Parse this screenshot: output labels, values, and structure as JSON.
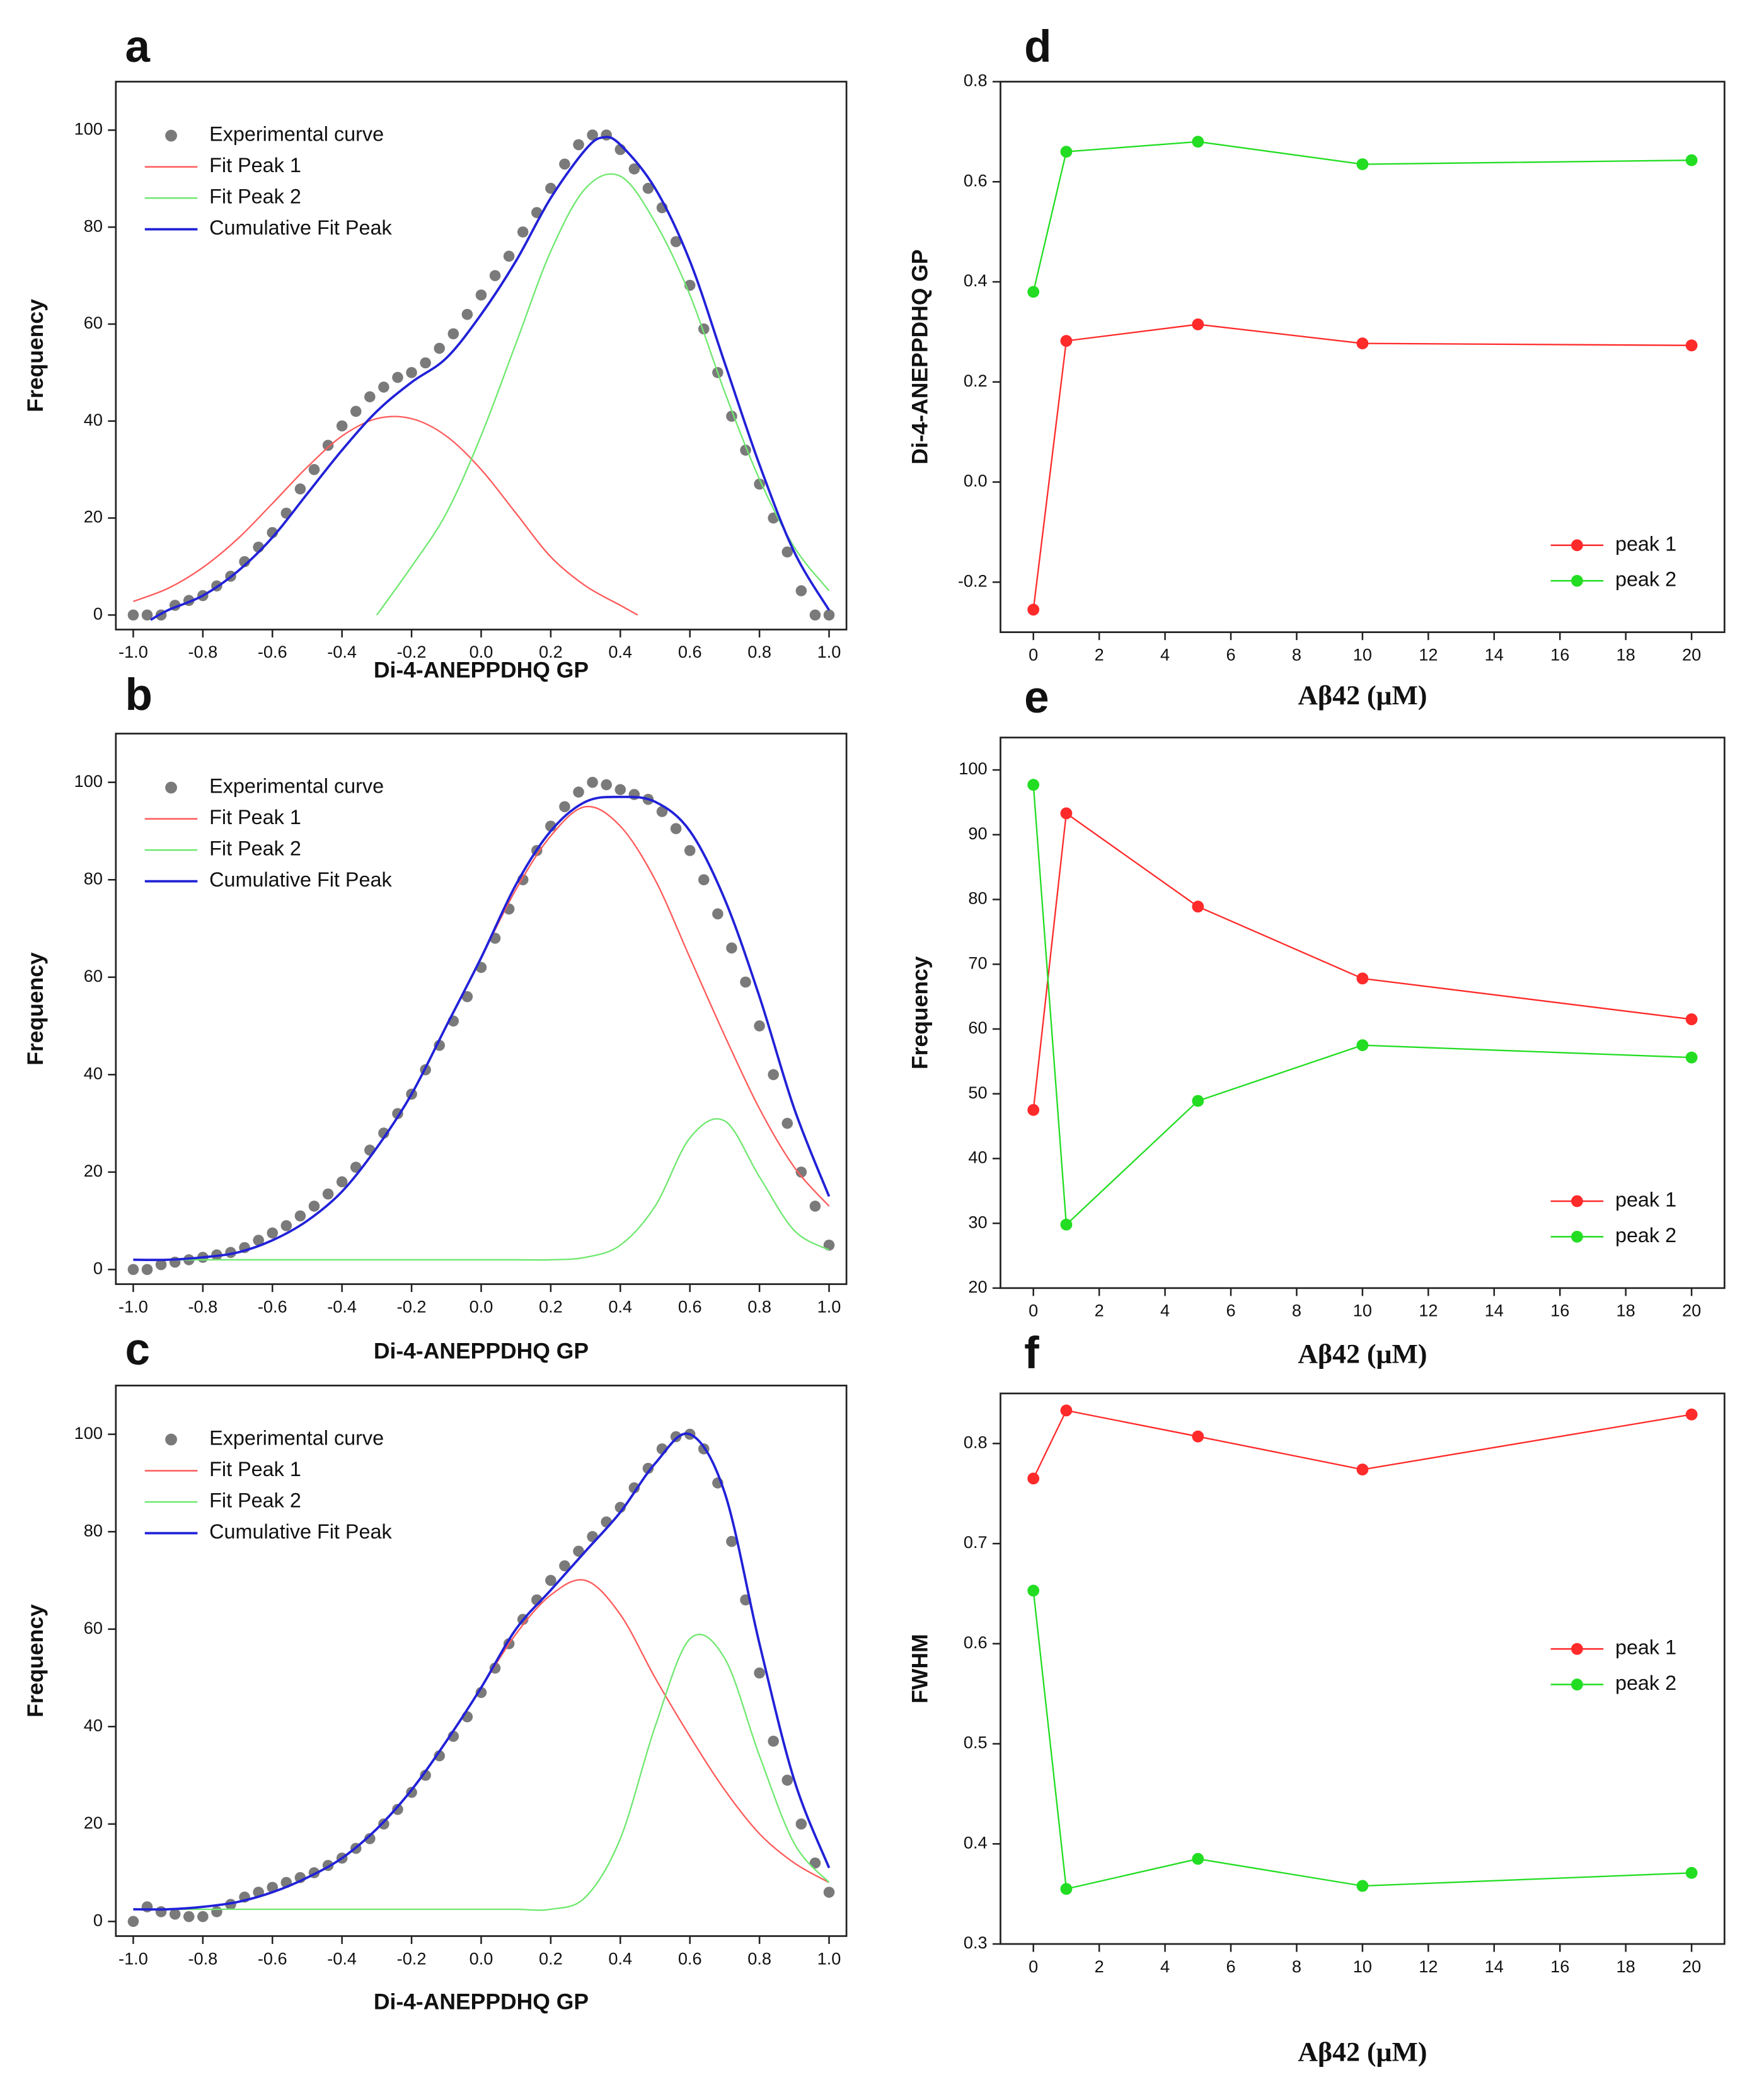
{
  "chart_data": [
    {
      "type": "line",
      "label": "a",
      "xlabel": "Di-4-ANEPPDHQ GP",
      "ylabel": "Frequency",
      "xlabel_font": "sans",
      "xlim": [
        -1.05,
        1.05
      ],
      "ylim": [
        -3,
        110
      ],
      "xticks": [
        {
          "value": -1.0,
          "label": "-1.0"
        },
        -0.8,
        -0.6,
        -0.4,
        -0.2,
        {
          "value": 0,
          "label": "0.0"
        },
        0.2,
        0.4,
        0.6,
        0.8,
        {
          "value": 1.0,
          "label": "1.0"
        }
      ],
      "yticks": [
        0,
        20,
        40,
        60,
        80,
        100
      ],
      "legend": "upper left",
      "series": [
        {
          "name": "Experimental curve",
          "color": "#7a7a7a",
          "markers": true,
          "line": false,
          "x": [
            -1.0,
            -0.96,
            -0.92,
            -0.88,
            -0.84,
            -0.8,
            -0.76,
            -0.72,
            -0.68,
            -0.64,
            -0.6,
            -0.56,
            -0.52,
            -0.48,
            -0.44,
            -0.4,
            -0.36,
            -0.32,
            -0.28,
            -0.24,
            -0.2,
            -0.16,
            -0.12,
            -0.08,
            -0.04,
            0,
            0.04,
            0.08,
            0.12,
            0.16,
            0.2,
            0.24,
            0.28,
            0.32,
            0.36,
            0.4,
            0.44,
            0.48,
            0.52,
            0.56,
            0.6,
            0.64,
            0.68,
            0.72,
            0.76,
            0.8,
            0.84,
            0.88,
            0.92,
            0.96,
            1.0
          ],
          "values": [
            0,
            0,
            0,
            2,
            3,
            4,
            6,
            8,
            11,
            14,
            17,
            21,
            26,
            30,
            35,
            39,
            42,
            45,
            47,
            49,
            50,
            52,
            55,
            58,
            62,
            66,
            70,
            74,
            79,
            83,
            88,
            93,
            97,
            99,
            99,
            96,
            92,
            88,
            84,
            77,
            68,
            59,
            50,
            41,
            34,
            27,
            20,
            13,
            5,
            0,
            0
          ]
        },
        {
          "name": "Fit Peak 1",
          "color": "#ff5a5a",
          "markers": false,
          "line": true,
          "smooth": true,
          "x": [
            -1,
            -0.9,
            -0.8,
            -0.7,
            -0.6,
            -0.5,
            -0.4,
            -0.3,
            -0.2,
            -0.1,
            0,
            0.1,
            0.2,
            0.3,
            0.4,
            0.45
          ],
          "values": [
            2.8,
            5.5,
            9.8,
            15.7,
            23,
            30.5,
            36.9,
            40.5,
            40.5,
            36.9,
            30,
            21,
            12,
            6,
            2,
            0
          ]
        },
        {
          "name": "Fit Peak 2",
          "color": "#6fe86f",
          "markers": false,
          "line": true,
          "smooth": true,
          "x": [
            -0.3,
            -0.2,
            -0.1,
            0,
            0.1,
            0.2,
            0.3,
            0.4,
            0.5,
            0.6,
            0.7,
            0.8,
            0.9,
            1.0
          ],
          "values": [
            0,
            10,
            21,
            37,
            56,
            75,
            88,
            90.5,
            81,
            66,
            46,
            28,
            14,
            5
          ]
        },
        {
          "name": "Cumulative Fit Peak",
          "color": "#2121d8",
          "markers": false,
          "line": true,
          "smooth": true,
          "x": [
            -0.95,
            -0.9,
            -0.8,
            -0.7,
            -0.6,
            -0.5,
            -0.4,
            -0.3,
            -0.2,
            -0.1,
            0,
            0.1,
            0.2,
            0.3,
            0.35,
            0.4,
            0.5,
            0.6,
            0.7,
            0.8,
            0.9,
            1.0
          ],
          "values": [
            -1,
            1,
            4,
            9,
            16,
            25,
            34,
            42,
            48,
            53,
            62,
            73,
            86,
            96,
            98.5,
            97,
            88,
            73,
            52,
            31,
            13,
            1
          ]
        }
      ]
    },
    {
      "type": "line",
      "label": "b",
      "xlabel": "Di-4-ANEPPDHQ GP",
      "ylabel": "Frequency",
      "xlabel_font": "sans",
      "xlim": [
        -1.05,
        1.05
      ],
      "ylim": [
        -3,
        110
      ],
      "xticks": [
        {
          "value": -1.0,
          "label": "-1.0"
        },
        -0.8,
        -0.6,
        -0.4,
        -0.2,
        {
          "value": 0,
          "label": "0.0"
        },
        0.2,
        0.4,
        0.6,
        0.8,
        {
          "value": 1.0,
          "label": "1.0"
        }
      ],
      "yticks": [
        0,
        20,
        40,
        60,
        80,
        100
      ],
      "legend": "upper left",
      "series": [
        {
          "name": "Experimental curve",
          "color": "#7a7a7a",
          "markers": true,
          "line": false,
          "x": [
            -1.0,
            -0.96,
            -0.92,
            -0.88,
            -0.84,
            -0.8,
            -0.76,
            -0.72,
            -0.68,
            -0.64,
            -0.6,
            -0.56,
            -0.52,
            -0.48,
            -0.44,
            -0.4,
            -0.36,
            -0.32,
            -0.28,
            -0.24,
            -0.2,
            -0.16,
            -0.12,
            -0.08,
            -0.04,
            0,
            0.04,
            0.08,
            0.12,
            0.16,
            0.2,
            0.24,
            0.28,
            0.32,
            0.36,
            0.4,
            0.44,
            0.48,
            0.52,
            0.56,
            0.6,
            0.64,
            0.68,
            0.72,
            0.76,
            0.8,
            0.84,
            0.88,
            0.92,
            0.96,
            1.0
          ],
          "values": [
            0,
            0,
            1,
            1.5,
            2,
            2.5,
            3,
            3.5,
            4.5,
            6,
            7.5,
            9,
            11,
            13,
            15.5,
            18,
            21,
            24.5,
            28,
            32,
            36,
            41,
            46,
            51,
            56,
            62,
            68,
            74,
            80,
            86,
            91,
            95,
            98,
            100,
            99.5,
            98.5,
            97.5,
            96.5,
            94,
            90.5,
            86,
            80,
            73,
            66,
            59,
            50,
            40,
            30,
            20,
            13,
            5
          ]
        },
        {
          "name": "Fit Peak 1",
          "color": "#ff5a5a",
          "markers": false,
          "line": true,
          "smooth": true,
          "x": [
            -1,
            -0.9,
            -0.8,
            -0.7,
            -0.6,
            -0.5,
            -0.4,
            -0.3,
            -0.2,
            -0.1,
            0,
            0.1,
            0.2,
            0.3,
            0.4,
            0.5,
            0.6,
            0.7,
            0.8,
            0.9,
            1.0
          ],
          "values": [
            2,
            2,
            2.5,
            3.5,
            6,
            10,
            16,
            25,
            36,
            50,
            64,
            78,
            89,
            95,
            91,
            80,
            64,
            48,
            33,
            21,
            13
          ]
        },
        {
          "name": "Fit Peak 2",
          "color": "#6fe86f",
          "markers": false,
          "line": true,
          "smooth": true,
          "x": [
            -1,
            -0.9,
            -0.8,
            -0.7,
            -0.6,
            -0.5,
            -0.4,
            -0.3,
            -0.2,
            -0.1,
            0,
            0.1,
            0.2,
            0.3,
            0.4,
            0.5,
            0.6,
            0.7,
            0.8,
            0.9,
            1.0
          ],
          "values": [
            2,
            2,
            2,
            2,
            2,
            2,
            2,
            2,
            2,
            2,
            2,
            2,
            2,
            2.5,
            5,
            13,
            27,
            30.5,
            19,
            8,
            4
          ]
        },
        {
          "name": "Cumulative Fit Peak",
          "color": "#2121d8",
          "markers": false,
          "line": true,
          "smooth": true,
          "x": [
            -1,
            -0.9,
            -0.8,
            -0.7,
            -0.6,
            -0.5,
            -0.4,
            -0.3,
            -0.2,
            -0.1,
            0,
            0.1,
            0.2,
            0.3,
            0.4,
            0.5,
            0.6,
            0.7,
            0.8,
            0.9,
            1.0
          ],
          "values": [
            2,
            2,
            2.5,
            3.5,
            6,
            10,
            16,
            25,
            36,
            50,
            64,
            79,
            90,
            96,
            97,
            96,
            90,
            76,
            56,
            33,
            15
          ]
        }
      ]
    },
    {
      "type": "line",
      "label": "c",
      "xlabel": "Di-4-ANEPPDHQ GP",
      "ylabel": "Frequency",
      "xlabel_font": "sans",
      "xlim": [
        -1.05,
        1.05
      ],
      "ylim": [
        -3,
        110
      ],
      "xticks": [
        {
          "value": -1.0,
          "label": "-1.0"
        },
        -0.8,
        -0.6,
        -0.4,
        -0.2,
        {
          "value": 0,
          "label": "0.0"
        },
        0.2,
        0.4,
        0.6,
        0.8,
        {
          "value": 1.0,
          "label": "1.0"
        }
      ],
      "yticks": [
        0,
        20,
        40,
        60,
        80,
        100
      ],
      "legend": "upper left",
      "series": [
        {
          "name": "Experimental curve",
          "color": "#7a7a7a",
          "markers": true,
          "line": false,
          "x": [
            -1.0,
            -0.96,
            -0.92,
            -0.88,
            -0.84,
            -0.8,
            -0.76,
            -0.72,
            -0.68,
            -0.64,
            -0.6,
            -0.56,
            -0.52,
            -0.48,
            -0.44,
            -0.4,
            -0.36,
            -0.32,
            -0.28,
            -0.24,
            -0.2,
            -0.16,
            -0.12,
            -0.08,
            -0.04,
            0,
            0.04,
            0.08,
            0.12,
            0.16,
            0.2,
            0.24,
            0.28,
            0.32,
            0.36,
            0.4,
            0.44,
            0.48,
            0.52,
            0.56,
            0.6,
            0.64,
            0.68,
            0.72,
            0.76,
            0.8,
            0.84,
            0.88,
            0.92,
            0.96,
            1.0
          ],
          "values": [
            0,
            3,
            2,
            1.5,
            1,
            1,
            2,
            3.5,
            5,
            6,
            7,
            8,
            9,
            10,
            11.5,
            13,
            15,
            17,
            20,
            23,
            26.5,
            30,
            34,
            38,
            42,
            47,
            52,
            57,
            62,
            66,
            70,
            73,
            76,
            79,
            82,
            85,
            89,
            93,
            97,
            99.5,
            100,
            97,
            90,
            78,
            66,
            51,
            37,
            29,
            20,
            12,
            6
          ]
        },
        {
          "name": "Fit Peak 1",
          "color": "#ff5a5a",
          "markers": false,
          "line": true,
          "smooth": true,
          "x": [
            -1,
            -0.9,
            -0.8,
            -0.7,
            -0.6,
            -0.5,
            -0.4,
            -0.3,
            -0.2,
            -0.1,
            0,
            0.1,
            0.2,
            0.3,
            0.4,
            0.5,
            0.6,
            0.7,
            0.8,
            0.9,
            1.0
          ],
          "values": [
            2.5,
            2.5,
            3,
            4,
            6,
            9,
            13,
            19,
            27,
            37,
            48,
            59,
            67,
            70,
            63,
            50,
            38,
            27,
            18,
            12,
            8
          ]
        },
        {
          "name": "Fit Peak 2",
          "color": "#6fe86f",
          "markers": false,
          "line": true,
          "smooth": true,
          "x": [
            -1,
            -0.9,
            -0.8,
            -0.7,
            -0.6,
            -0.5,
            -0.4,
            -0.3,
            -0.2,
            -0.1,
            0,
            0.1,
            0.2,
            0.3,
            0.4,
            0.5,
            0.6,
            0.7,
            0.8,
            0.9,
            1.0
          ],
          "values": [
            2.5,
            2.5,
            2.5,
            2.5,
            2.5,
            2.5,
            2.5,
            2.5,
            2.5,
            2.5,
            2.5,
            2.5,
            2.5,
            5,
            17,
            40,
            58,
            54,
            34,
            16,
            8
          ]
        },
        {
          "name": "Cumulative Fit Peak",
          "color": "#2121d8",
          "markers": false,
          "line": true,
          "smooth": true,
          "x": [
            -1,
            -0.9,
            -0.8,
            -0.7,
            -0.6,
            -0.5,
            -0.4,
            -0.3,
            -0.2,
            -0.1,
            0,
            0.1,
            0.2,
            0.3,
            0.4,
            0.5,
            0.6,
            0.7,
            0.8,
            0.9,
            1.0
          ],
          "values": [
            2.5,
            2.5,
            3,
            4,
            6,
            9,
            13,
            19,
            27,
            37,
            48,
            60,
            68,
            76,
            84,
            94,
            100,
            88,
            57,
            29,
            11
          ]
        }
      ]
    },
    {
      "type": "line",
      "label": "d",
      "xlabel": "Aβ42 (μM)",
      "ylabel": "Di-4-ANEPPDHQ GP",
      "xlabel_font": "serif",
      "x": [
        0,
        1,
        5,
        10,
        20
      ],
      "xlim": [
        -1,
        21
      ],
      "ylim": [
        -0.3,
        0.8
      ],
      "xticks": [
        0,
        2,
        4,
        6,
        8,
        10,
        12,
        14,
        16,
        18,
        20
      ],
      "yticks": [
        -0.2,
        {
          "value": 0,
          "label": "0.0"
        },
        0.2,
        0.4,
        0.6,
        0.8
      ],
      "legend": "lower right",
      "series": [
        {
          "name": "peak 1",
          "color": "#ff2a2a",
          "markers": true,
          "line": true,
          "values": [
            -0.255,
            0.282,
            0.315,
            0.277,
            0.273
          ]
        },
        {
          "name": "peak 2",
          "color": "#22dd22",
          "markers": true,
          "line": true,
          "values": [
            0.38,
            0.66,
            0.68,
            0.635,
            0.643
          ]
        }
      ]
    },
    {
      "type": "line",
      "label": "e",
      "xlabel": "Aβ42 (μM)",
      "ylabel": "Frequency",
      "xlabel_font": "serif",
      "x": [
        0,
        1,
        5,
        10,
        20
      ],
      "xlim": [
        -1,
        21
      ],
      "ylim": [
        20,
        105
      ],
      "xticks": [
        0,
        2,
        4,
        6,
        8,
        10,
        12,
        14,
        16,
        18,
        20
      ],
      "yticks": [
        20,
        30,
        40,
        50,
        60,
        70,
        80,
        90,
        100
      ],
      "legend": "lower right",
      "series": [
        {
          "name": "peak 1",
          "color": "#ff2a2a",
          "markers": true,
          "line": true,
          "values": [
            47.5,
            93.3,
            78.9,
            67.8,
            61.5
          ]
        },
        {
          "name": "peak 2",
          "color": "#22dd22",
          "markers": true,
          "line": true,
          "values": [
            97.7,
            29.8,
            48.9,
            57.5,
            55.6
          ]
        }
      ]
    },
    {
      "type": "line",
      "label": "f",
      "xlabel": "Aβ42 (μM)",
      "ylabel": "FWHM",
      "xlabel_font": "serif",
      "x": [
        0,
        1,
        5,
        10,
        20
      ],
      "xlim": [
        -1,
        21
      ],
      "ylim": [
        0.3,
        0.85
      ],
      "xticks": [
        0,
        2,
        4,
        6,
        8,
        10,
        12,
        14,
        16,
        18,
        20
      ],
      "yticks": [
        0.3,
        0.4,
        0.5,
        0.6,
        0.7,
        0.8
      ],
      "legend": "center right",
      "series": [
        {
          "name": "peak 1",
          "color": "#ff2a2a",
          "markers": true,
          "line": true,
          "values": [
            0.765,
            0.833,
            0.807,
            0.774,
            0.829
          ]
        },
        {
          "name": "peak 2",
          "color": "#22dd22",
          "markers": true,
          "line": true,
          "values": [
            0.653,
            0.355,
            0.385,
            0.358,
            0.371
          ]
        }
      ]
    }
  ]
}
